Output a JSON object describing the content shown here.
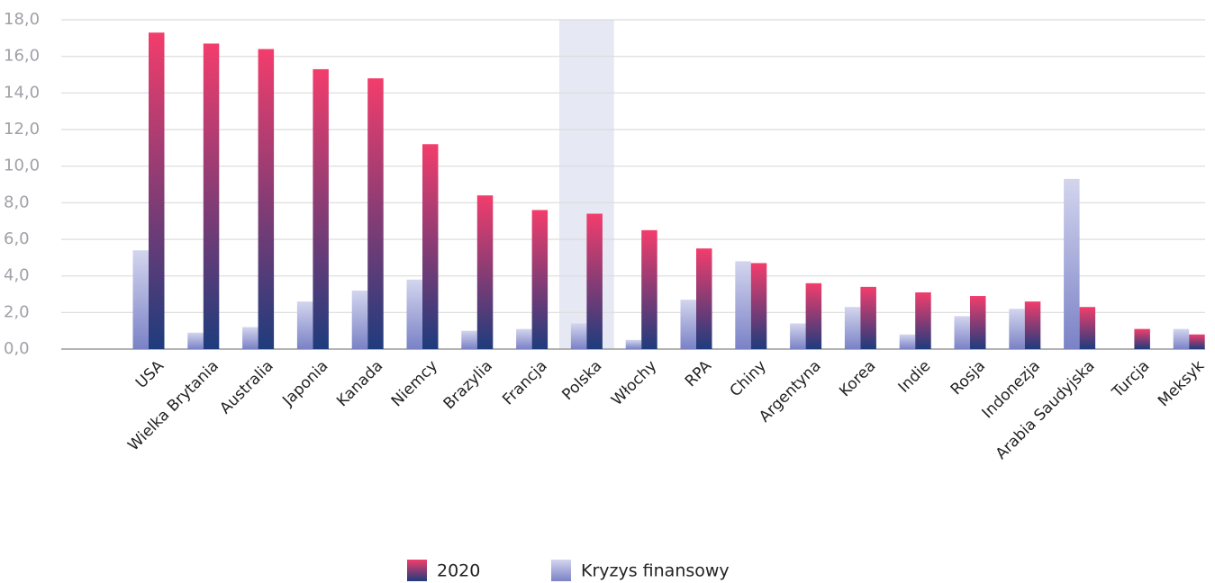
{
  "chart_data": {
    "type": "bar",
    "categories": [
      "USA",
      "Wielka Brytania",
      "Australia",
      "Japonia",
      "Kanada",
      "Niemcy",
      "Brazylia",
      "Francja",
      "Polska",
      "Włochy",
      "RPA",
      "Chiny",
      "Argentyna",
      "Korea",
      "Indie",
      "Rosja",
      "Indonezja",
      "Arabia Saudyjska",
      "Turcja",
      "Meksyk"
    ],
    "series": [
      {
        "name": "2020",
        "color": [
          "#f23d6c",
          "#1e3c7d"
        ],
        "values": [
          17.3,
          16.7,
          16.4,
          15.3,
          14.8,
          11.2,
          8.4,
          7.6,
          7.4,
          6.5,
          5.5,
          4.7,
          3.6,
          3.4,
          3.1,
          2.9,
          2.6,
          2.3,
          1.1,
          0.8
        ]
      },
      {
        "name": "Kryzys finansowy",
        "color": [
          "#d3d5ee",
          "#7a82c6"
        ],
        "values": [
          5.4,
          0.9,
          1.2,
          2.6,
          3.2,
          3.8,
          1.0,
          1.1,
          1.4,
          0.5,
          2.7,
          4.8,
          1.4,
          2.3,
          0.8,
          1.8,
          2.2,
          9.3,
          0,
          1.1
        ]
      }
    ],
    "series_order": [
      1,
      0
    ],
    "highlight_index": 8,
    "highlight_color": "#e6e8f3",
    "ylim": [
      0,
      18
    ],
    "yticks": [
      {
        "value": 0,
        "label": "0,0"
      },
      {
        "value": 2,
        "label": "2,0"
      },
      {
        "value": 4,
        "label": "4,0"
      },
      {
        "value": 6,
        "label": "6,0"
      },
      {
        "value": 8,
        "label": "8,0"
      },
      {
        "value": 10,
        "label": "10,0"
      },
      {
        "value": 12,
        "label": "12,0"
      },
      {
        "value": 14,
        "label": "14,0"
      },
      {
        "value": 16,
        "label": "16,0"
      },
      {
        "value": 18,
        "label": "18,0"
      }
    ],
    "grid": true
  }
}
